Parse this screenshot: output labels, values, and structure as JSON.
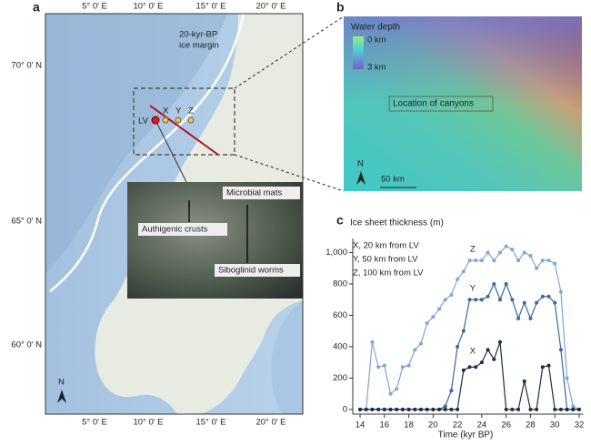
{
  "panel_a": {
    "letter": "a",
    "lon_labels": [
      "5° 0′ E",
      "10° 0′ E",
      "15° 0′ E",
      "20° 0′ E"
    ],
    "lat_labels": [
      "70° 0′ N",
      "65° 0′ N",
      "60° 0′ N"
    ],
    "ice_margin_label": [
      "20-kyr-BP",
      "ice margin"
    ],
    "sites": [
      "LV",
      "X",
      "Y",
      "Z"
    ],
    "photo_labels": [
      "Microbial mats",
      "Authigenic crusts",
      "Siboglinid worms"
    ],
    "north": "N"
  },
  "panel_b": {
    "letter": "b",
    "legend_title": "Water depth",
    "legend_ticks": [
      "0 km",
      "3 km"
    ],
    "annotation": "Location of canyons",
    "north": "N",
    "scale": "50 km"
  },
  "chart_data": {
    "type": "line",
    "letter": "c",
    "title": "Ice sheet thickness (m)",
    "x_label": "Time (kyr BP)",
    "annotations": [
      "X,  20 km from LV",
      "Y,  50 km from LV",
      "Z,  100 km from LV"
    ],
    "x": [
      14,
      14.5,
      15,
      15.5,
      16,
      16.5,
      17,
      17.5,
      18,
      18.5,
      19,
      19.5,
      20,
      20.5,
      21,
      21.5,
      22,
      22.5,
      23,
      23.5,
      24,
      24.5,
      25,
      25.5,
      26,
      26.5,
      27,
      27.5,
      28,
      28.5,
      29,
      29.5,
      30,
      30.5,
      31,
      31.5,
      32
    ],
    "series": [
      {
        "name": "Z",
        "color": "#7ea7d6",
        "values": [
          0,
          0,
          430,
          270,
          280,
          100,
          130,
          270,
          280,
          380,
          420,
          550,
          590,
          640,
          700,
          730,
          830,
          880,
          950,
          950,
          950,
          1000,
          950,
          1000,
          1040,
          1020,
          950,
          1000,
          980,
          900,
          950,
          950,
          930,
          750,
          200,
          20,
          0
        ]
      },
      {
        "name": "Y",
        "color": "#3a6898",
        "values": [
          0,
          0,
          0,
          0,
          0,
          0,
          0,
          0,
          0,
          0,
          0,
          0,
          0,
          0,
          20,
          120,
          400,
          500,
          700,
          700,
          700,
          720,
          800,
          700,
          800,
          700,
          580,
          680,
          580,
          680,
          720,
          720,
          680,
          380,
          0,
          0,
          0
        ]
      },
      {
        "name": "X",
        "color": "#1c2c42",
        "values": [
          0,
          0,
          0,
          0,
          0,
          0,
          0,
          0,
          0,
          0,
          0,
          0,
          0,
          0,
          0,
          0,
          0,
          250,
          270,
          270,
          300,
          380,
          320,
          430,
          0,
          0,
          0,
          180,
          0,
          0,
          270,
          280,
          0,
          0,
          0,
          0,
          0
        ]
      }
    ],
    "xlim": [
      13.4,
      32.3
    ],
    "ylim": [
      -30,
      1090
    ],
    "xticks": [
      14,
      16,
      18,
      20,
      22,
      24,
      26,
      28,
      30,
      32
    ],
    "yticks": [
      0,
      200,
      400,
      600,
      800,
      {
        "value": 1000,
        "label": "1,000"
      }
    ]
  }
}
